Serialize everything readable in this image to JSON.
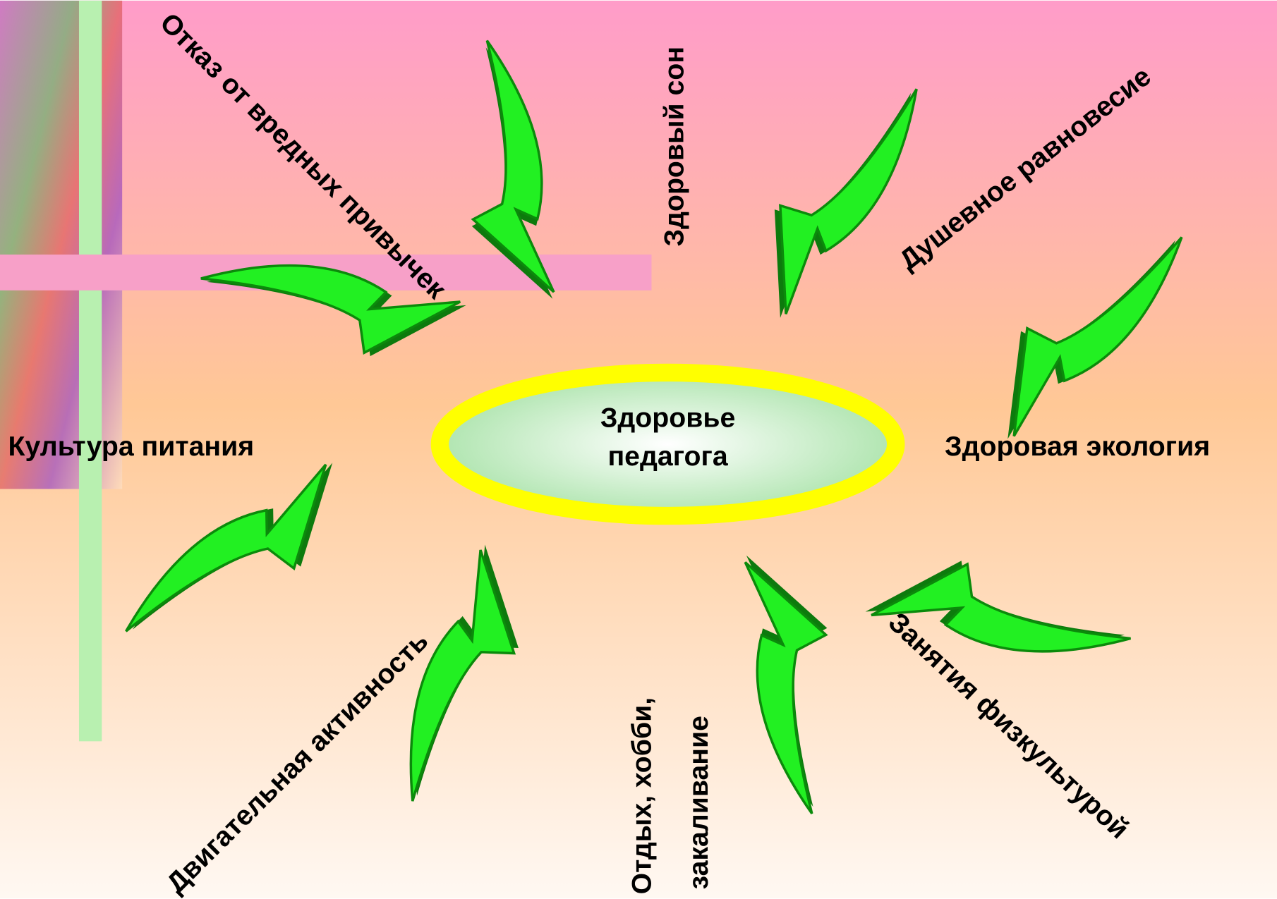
{
  "center": {
    "lines": [
      "Здоровье",
      "педагога"
    ]
  },
  "labels": {
    "habits": "Отказ от вредных привычек",
    "sleep": "Здоровый сон",
    "balance": "Душевное равновесие",
    "nutrition": "Культура питания",
    "ecology": "Здоровая экология",
    "sport": "Занятия физкультурой",
    "rest": "Отдых, хобби,",
    "hardening": "закаливание",
    "activity": "Двигательная активность"
  }
}
